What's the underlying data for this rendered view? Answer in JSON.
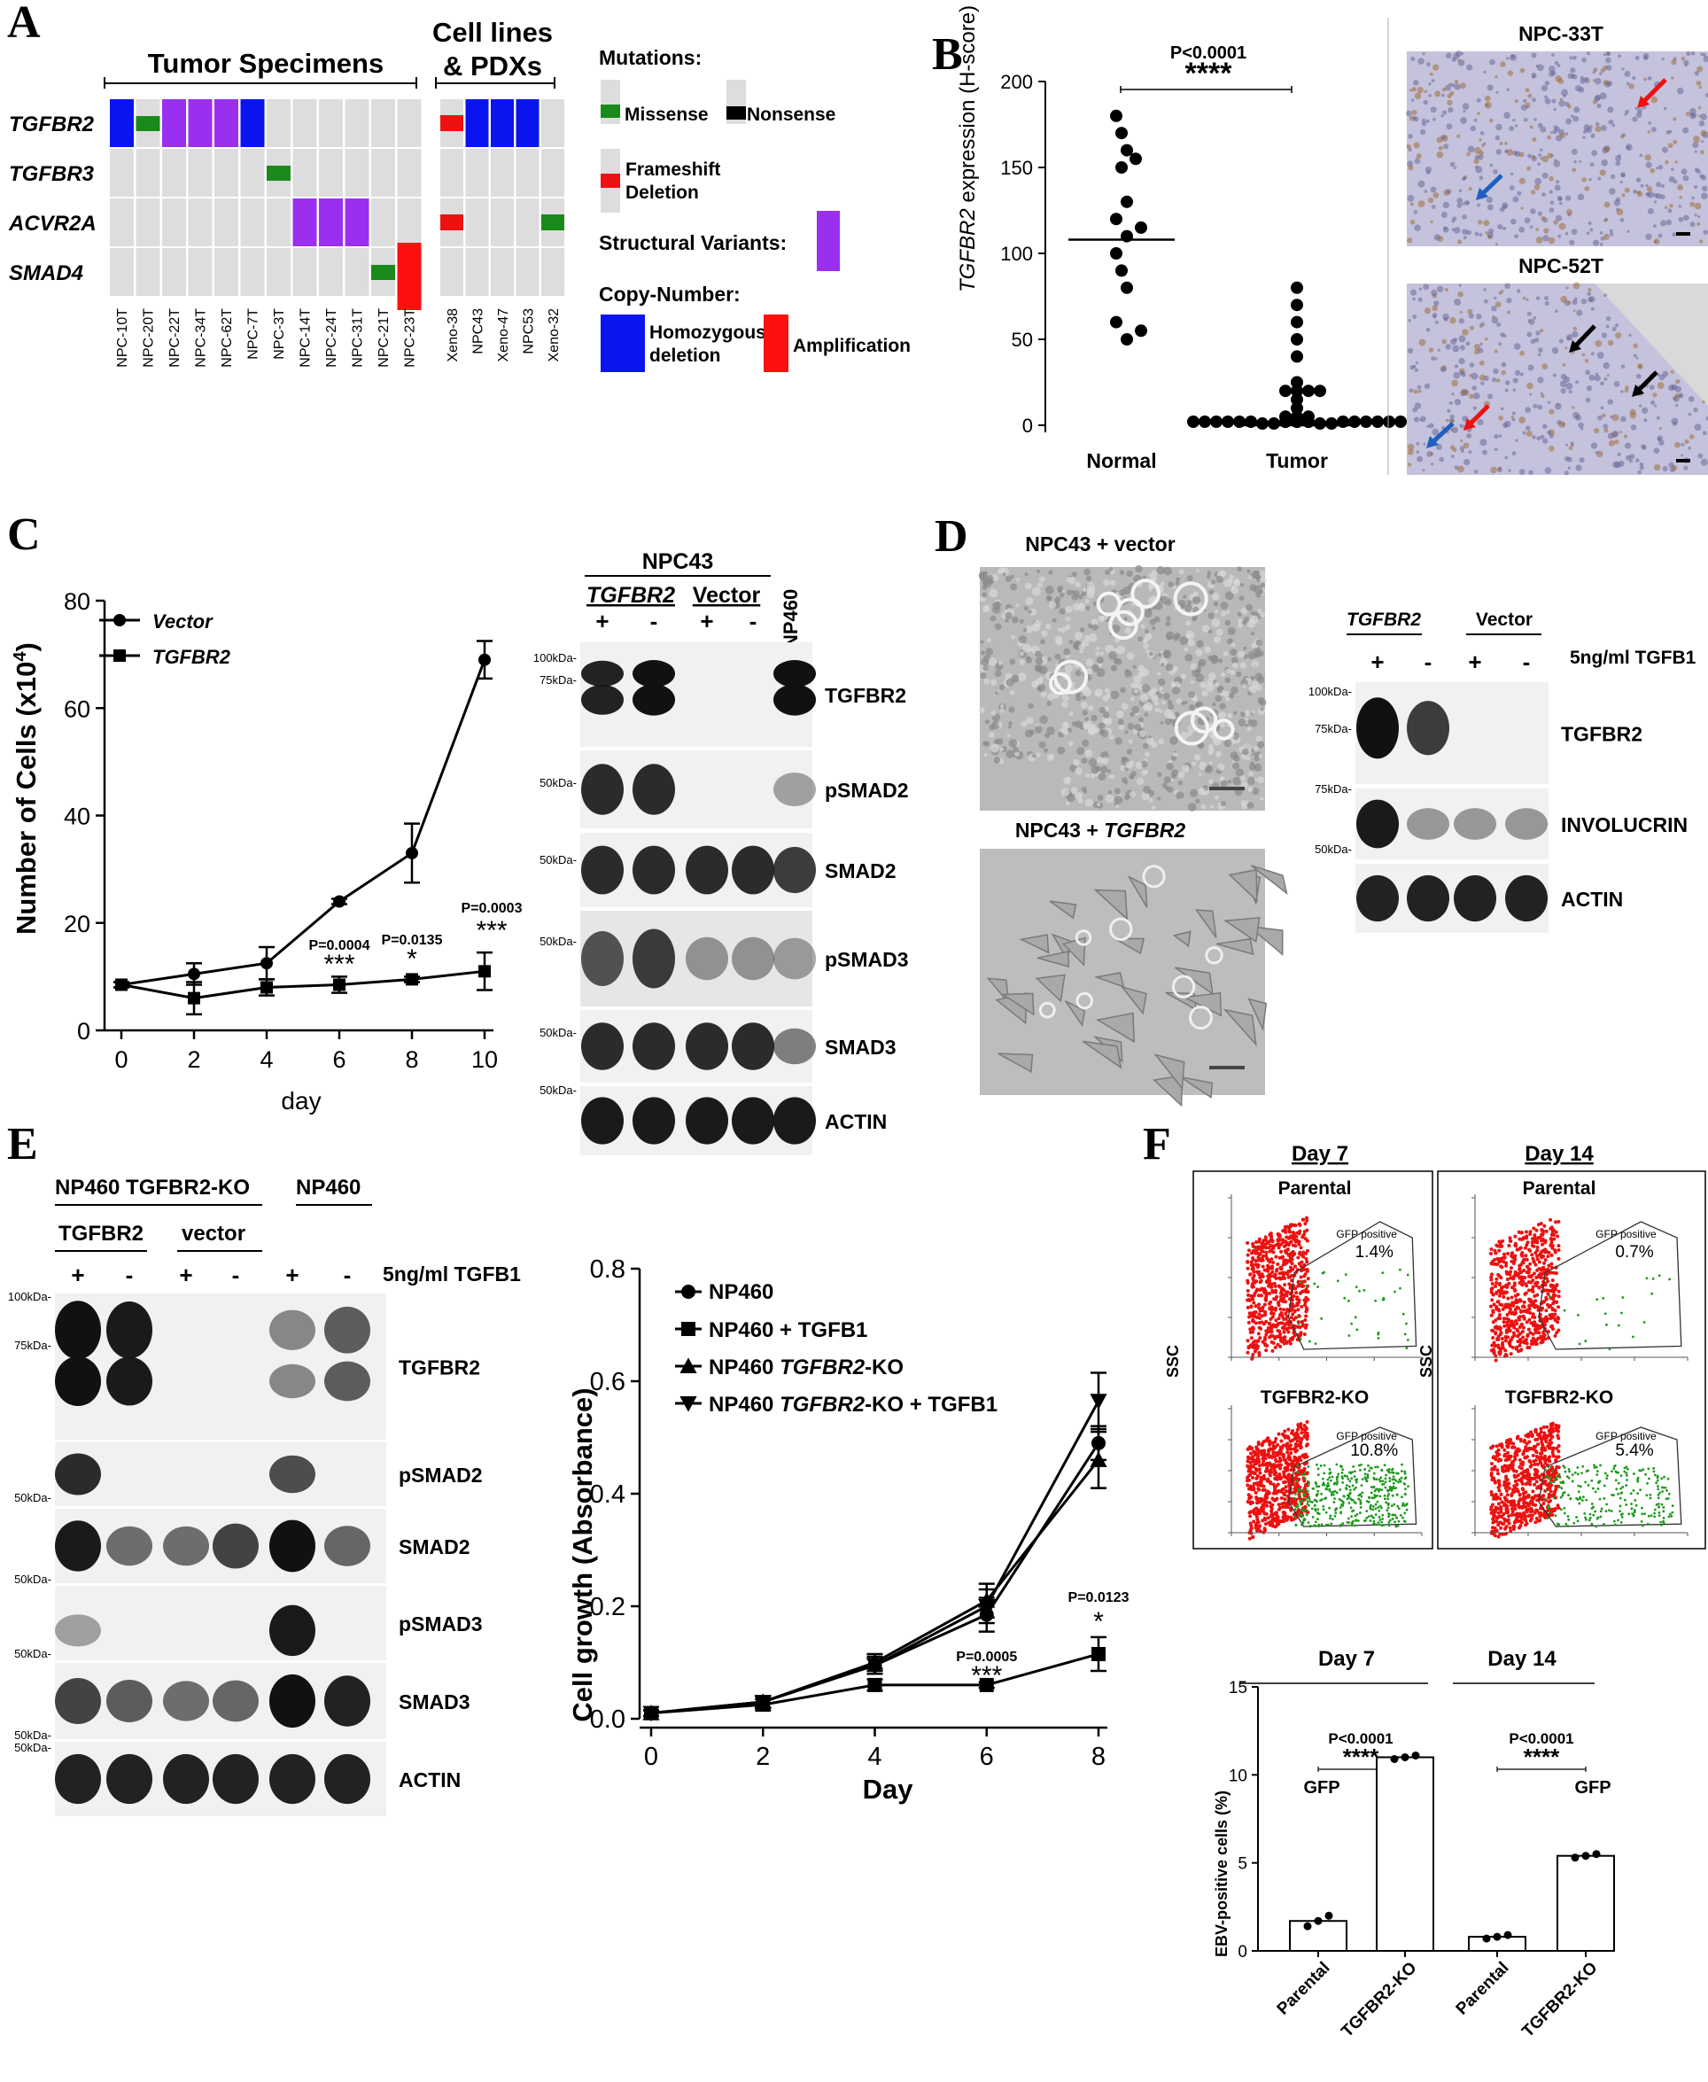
{
  "panel_letters": {
    "a": "A",
    "b": "B",
    "c": "C",
    "d": "D",
    "e": "E",
    "f": "F"
  },
  "panel_a": {
    "tumor_header": "Tumor Specimens",
    "cell_header_line1": "Cell lines",
    "cell_header_line2": "& PDXs",
    "genes": [
      "TGFBR2",
      "TGFBR3",
      "ACVR2A",
      "SMAD4"
    ],
    "tumor_samples": [
      "NPC-10T",
      "NPC-20T",
      "NPC-22T",
      "NPC-34T",
      "NPC-62T",
      "NPC-7T",
      "NPC-3T",
      "NPC-14T",
      "NPC-24T",
      "NPC-31T",
      "NPC-21T",
      "NPC-23T"
    ],
    "cell_samples": [
      "Xeno-38",
      "NPC43",
      "Xeno-47",
      "NPC53",
      "Xeno-32"
    ],
    "legend": {
      "mutations_title": "Mutations:",
      "missense": "Missense",
      "nonsense": "Nonsense",
      "frameshift_line1": "Frameshift",
      "frameshift_line2": "Deletion",
      "structural": "Structural Variants:",
      "copy_title": "Copy-Number:",
      "homdel_line1": "Homozygous",
      "homdel_line2": "deletion",
      "amplification": "Amplification"
    },
    "colors": {
      "missense": "#1a8a1a",
      "nonsense": "#000000",
      "frameshift": "#ee1111",
      "structural": "#9b2ff0",
      "homdel": "#0a14ee",
      "amp": "#ff1010",
      "empty": "#dddddd"
    }
  },
  "panel_b": {
    "ylabel_gene": "TGFBR2",
    "ylabel_rest": " expression (H-score)",
    "p_value": "P<0.0001",
    "stars": "****",
    "images": [
      "NPC-33T",
      "NPC-52T"
    ],
    "chart_data": {
      "type": "scatter",
      "categories": [
        "Normal",
        "Tumor"
      ],
      "ylim": [
        0,
        200
      ],
      "yticks": [
        0,
        50,
        100,
        150,
        200
      ],
      "series": [
        {
          "name": "Normal",
          "values": [
            180,
            170,
            160,
            155,
            150,
            130,
            120,
            115,
            110,
            100,
            90,
            80,
            60,
            55,
            50
          ],
          "median": 108
        },
        {
          "name": "Tumor",
          "values": [
            80,
            70,
            60,
            50,
            40,
            25,
            20,
            20,
            20,
            20,
            15,
            10,
            5,
            5,
            5,
            2,
            2,
            2,
            1,
            1,
            1,
            1,
            0,
            0,
            0,
            0,
            0,
            0,
            0,
            0,
            0,
            0,
            0,
            0
          ],
          "median": 0
        }
      ]
    }
  },
  "panel_c": {
    "ylabel": "Number of Cells (x10",
    "ylabel_exp": "4",
    "ylabel_end": ")",
    "xlabel": "day",
    "annotations": [
      {
        "p": "P=0.0004",
        "stars": "***"
      },
      {
        "p": "P=0.0135",
        "stars": "*"
      },
      {
        "p": "P=0.0003",
        "stars": "***"
      }
    ],
    "chart_data": {
      "type": "line",
      "x": [
        0,
        2,
        4,
        6,
        8,
        10
      ],
      "xlim": [
        0,
        10
      ],
      "ylim": [
        0,
        80
      ],
      "yticks": [
        0,
        20,
        40,
        60,
        80
      ],
      "series": [
        {
          "name": "Vector",
          "marker": "circle",
          "values": [
            8.5,
            10.5,
            12.5,
            24,
            33,
            69
          ],
          "err": [
            0.5,
            2,
            3,
            0.5,
            5.5,
            3.5
          ]
        },
        {
          "name": "TGFBR2",
          "marker": "square",
          "values": [
            8.5,
            6,
            8,
            8.5,
            9.5,
            11
          ],
          "err": [
            0.5,
            3,
            1.5,
            1.5,
            0.5,
            3.5
          ]
        }
      ]
    },
    "blot": {
      "cell": "NPC43",
      "group1": "TGFBR2",
      "group2": "Vector",
      "control": "NP460",
      "signs": [
        "+",
        "-",
        "+",
        "-"
      ],
      "bands": [
        "TGFBR2",
        "pSMAD2",
        "SMAD2",
        "pSMAD3",
        "SMAD3",
        "ACTIN"
      ],
      "markers": [
        "100kDa",
        "75kDa",
        "50kDa",
        "50kDa",
        "50kDa",
        "50kDa",
        "50kDa"
      ]
    }
  },
  "panel_d": {
    "img1_title": "NPC43 + vector",
    "img2_title_pre": "NPC43 + ",
    "img2_title_gene": "TGFBR2",
    "blot": {
      "group1": "TGFBR2",
      "group2": "Vector",
      "treatment": "5ng/ml TGFB1",
      "signs": [
        "+",
        "-",
        "+",
        "-"
      ],
      "bands": [
        "TGFBR2",
        "INVOLUCRIN",
        "ACTIN"
      ],
      "markers": [
        "100kDa",
        "75kDa",
        "75kDa",
        "50kDa"
      ]
    }
  },
  "panel_e": {
    "blot": {
      "header1": "NP460 TGFBR2-KO",
      "header2": "NP460",
      "group1": "TGFBR2",
      "group2": "vector",
      "treatment": "5ng/ml TGFB1",
      "signs": [
        "+",
        "-",
        "+",
        "-",
        "+",
        "-"
      ],
      "bands": [
        "TGFBR2",
        "pSMAD2",
        "SMAD2",
        "pSMAD3",
        "SMAD3",
        "ACTIN"
      ],
      "markers": [
        "100kDa",
        "75kDa",
        "50kDa",
        "50kDa",
        "50kDa",
        "50kDa",
        "50kDa"
      ]
    },
    "ylabel": "Cell growth (Absorbance)",
    "xlabel": "Day",
    "legend": [
      "NP460",
      "NP460 + TGFB1",
      "NP460 ",
      "TGFBR2",
      "-KO",
      "NP460 ",
      "TGFBR2",
      "-KO + TGFB1"
    ],
    "annotations": [
      {
        "p": "P=0.0005",
        "stars": "***"
      },
      {
        "p": "P=0.0123",
        "stars": "*"
      }
    ],
    "chart_data": {
      "type": "line",
      "x": [
        0,
        2,
        4,
        6,
        8
      ],
      "xlim": [
        0,
        8
      ],
      "ylim": [
        0,
        0.8
      ],
      "yticks": [
        0.0,
        0.2,
        0.4,
        0.6,
        0.8
      ],
      "series": [
        {
          "name": "NP460",
          "marker": "circle",
          "values": [
            0.01,
            0.03,
            0.095,
            0.185,
            0.49
          ],
          "err": [
            0.005,
            0.01,
            0.015,
            0.03,
            0.03
          ]
        },
        {
          "name": "NP460 + TGFB1",
          "marker": "square",
          "values": [
            0.01,
            0.025,
            0.06,
            0.06,
            0.115
          ],
          "err": [
            0.005,
            0.01,
            0.01,
            0.005,
            0.03
          ]
        },
        {
          "name": "NP460 TGFBR2-KO",
          "marker": "triangle-up",
          "values": [
            0.01,
            0.03,
            0.1,
            0.21,
            0.46
          ],
          "err": [
            0.005,
            0.01,
            0.015,
            0.03,
            0.05
          ]
        },
        {
          "name": "NP460 TGFBR2-KO + TGFB1",
          "marker": "triangle-down",
          "values": [
            0.01,
            0.03,
            0.095,
            0.2,
            0.565
          ],
          "err": [
            0.005,
            0.01,
            0.015,
            0.03,
            0.05
          ]
        }
      ]
    }
  },
  "panel_f": {
    "day7": "Day 7",
    "day14": "Day 14",
    "parental": "Parental",
    "ko": "TGFBR2-KO",
    "ssc": "SSC",
    "gfp_positive": "GFP positive",
    "pct_d7_par": "1.4%",
    "pct_d14_par": "0.7%",
    "pct_d7_ko": "10.8%",
    "pct_d14_ko": "5.4%",
    "ylabel": "EBV-positive cells  (%)",
    "gfp": "GFP",
    "p_value": "P<0.0001",
    "stars": "****",
    "chart_data": {
      "type": "bar",
      "categories": [
        "Parental",
        "TGFBR2-KO",
        "Parental",
        "TGFBR2-KO"
      ],
      "groups": [
        "Day 7",
        "Day 7",
        "Day 14",
        "Day 14"
      ],
      "values": [
        1.7,
        11.0,
        0.8,
        5.4
      ],
      "points": [
        [
          1.4,
          1.7,
          2.0
        ],
        [
          10.9,
          11.0,
          11.1
        ],
        [
          0.7,
          0.8,
          0.9
        ],
        [
          5.3,
          5.4,
          5.5
        ]
      ],
      "ylim": [
        0,
        15
      ],
      "yticks": [
        0,
        5,
        10,
        15
      ]
    }
  }
}
